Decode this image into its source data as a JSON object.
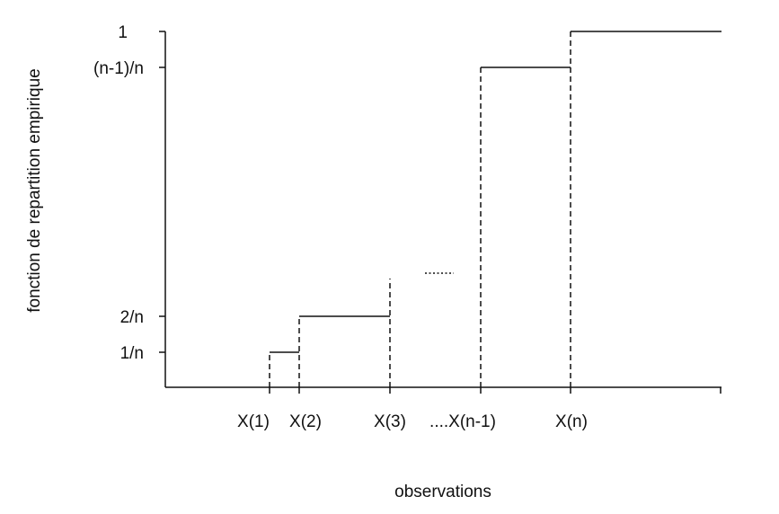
{
  "chart_data": {
    "type": "line",
    "title": "",
    "xlabel": "observations",
    "ylabel": "fonction de repartition empirique",
    "x_ticks": [
      "X(1)",
      "X(2)",
      "X(3)",
      "....X(n-1)",
      "X(n)"
    ],
    "y_ticks": [
      "1/n",
      "2/n",
      "(n-1)/n",
      "1"
    ],
    "ellipsis": "......",
    "series": [
      {
        "step": "post",
        "points": [
          {
            "x": "X(1)",
            "y": "1/n"
          },
          {
            "x": "X(2)",
            "y": "2/n"
          },
          {
            "x": "X(3)",
            "y": "2/n"
          },
          {
            "x": "X(n-1)",
            "y": "(n-1)/n"
          },
          {
            "x": "X(n)",
            "y": "1"
          }
        ]
      }
    ],
    "grid": false,
    "legend": "none"
  }
}
